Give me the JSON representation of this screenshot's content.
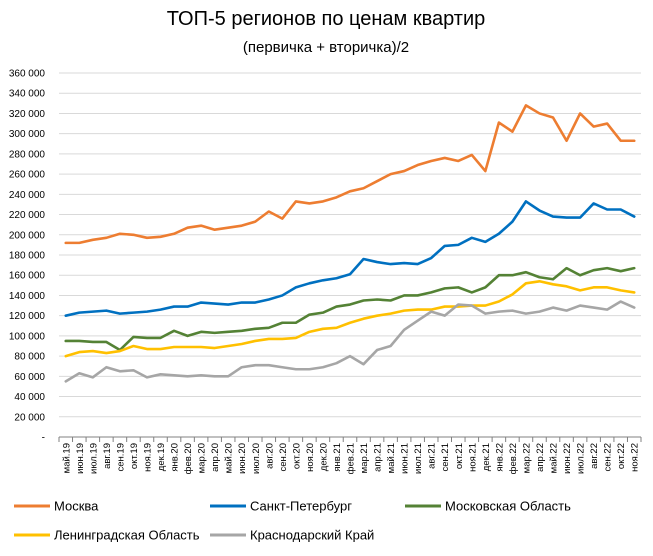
{
  "chart_data": {
    "type": "line",
    "title": "ТОП-5 регионов по ценам квартир",
    "subtitle": "(первичка + вторичка)/2",
    "ylim": [
      0,
      360000
    ],
    "ytick_labels": [
      "-",
      "20 000",
      "40 000",
      "60 000",
      "80 000",
      "100 000",
      "120 000",
      "140 000",
      "160 000",
      "180 000",
      "200 000",
      "220 000",
      "240 000",
      "260 000",
      "280 000",
      "300 000",
      "320 000",
      "340 000",
      "360 000"
    ],
    "categories": [
      "май.19",
      "июн.19",
      "июл.19",
      "авг.19",
      "сен.19",
      "окт.19",
      "ноя.19",
      "дек.19",
      "янв.20",
      "фев.20",
      "мар.20",
      "апр.20",
      "май.20",
      "июн.20",
      "июл.20",
      "авг.20",
      "сен.20",
      "окт.20",
      "ноя.20",
      "дек.20",
      "янв.21",
      "фев.21",
      "мар.21",
      "апр.21",
      "май.21",
      "июн.21",
      "июл.21",
      "авг.21",
      "сен.21",
      "окт.21",
      "ноя.21",
      "дек.21",
      "янв.22",
      "фев.22",
      "мар.22",
      "апр.22",
      "май.22",
      "июн.22",
      "июл.22",
      "авг.22",
      "сен.22",
      "окт.22",
      "ноя.22"
    ],
    "series": [
      {
        "name": "Москва",
        "color": "#ED7D31",
        "values": [
          192000,
          192000,
          195000,
          197000,
          201000,
          200000,
          197000,
          198000,
          201000,
          207000,
          209000,
          205000,
          207000,
          209000,
          213000,
          223000,
          216000,
          233000,
          231000,
          233000,
          237000,
          243000,
          246000,
          253000,
          260000,
          263000,
          269000,
          273000,
          276000,
          273000,
          279000,
          263000,
          311000,
          302000,
          328000,
          320000,
          316000,
          293000,
          320000,
          307000,
          310000,
          293000,
          293000
        ]
      },
      {
        "name": "Санкт-Петербург",
        "color": "#0070C0",
        "values": [
          120000,
          123000,
          124000,
          125000,
          122000,
          123000,
          124000,
          126000,
          129000,
          129000,
          133000,
          132000,
          131000,
          133000,
          133000,
          136000,
          140000,
          148000,
          152000,
          155000,
          157000,
          161000,
          176000,
          173000,
          171000,
          172000,
          171000,
          177000,
          189000,
          190000,
          197000,
          193000,
          201000,
          213000,
          233000,
          224000,
          218000,
          217000,
          217000,
          231000,
          225000,
          225000,
          218000
        ]
      },
      {
        "name": "Московская Область",
        "color": "#548235",
        "values": [
          95000,
          95000,
          94000,
          94000,
          86000,
          99000,
          98000,
          98000,
          105000,
          100000,
          104000,
          103000,
          104000,
          105000,
          107000,
          108000,
          113000,
          113000,
          121000,
          123000,
          129000,
          131000,
          135000,
          136000,
          135000,
          140000,
          140000,
          143000,
          147000,
          148000,
          143000,
          148000,
          160000,
          160000,
          163000,
          158000,
          156000,
          167000,
          160000,
          165000,
          167000,
          164000,
          167000
        ]
      },
      {
        "name": "Ленинградская Область",
        "color": "#FFC000",
        "values": [
          80000,
          84000,
          85000,
          83000,
          85000,
          90000,
          87000,
          87000,
          89000,
          89000,
          89000,
          88000,
          90000,
          92000,
          95000,
          97000,
          97000,
          98000,
          104000,
          107000,
          108000,
          113000,
          117000,
          120000,
          122000,
          125000,
          126000,
          126000,
          129000,
          129000,
          130000,
          130000,
          134000,
          141000,
          152000,
          154000,
          151000,
          149000,
          145000,
          148000,
          148000,
          145000,
          143000
        ]
      },
      {
        "name": "Краснодарский Край",
        "color": "#A6A6A6",
        "values": [
          55000,
          63000,
          59000,
          69000,
          65000,
          66000,
          59000,
          62000,
          61000,
          60000,
          61000,
          60000,
          60000,
          69000,
          71000,
          71000,
          69000,
          67000,
          67000,
          69000,
          73000,
          80000,
          72000,
          86000,
          90000,
          106000,
          115000,
          124000,
          120000,
          131000,
          130000,
          122000,
          124000,
          125000,
          122000,
          124000,
          128000,
          125000,
          130000,
          128000,
          126000,
          134000,
          128000
        ]
      }
    ]
  }
}
